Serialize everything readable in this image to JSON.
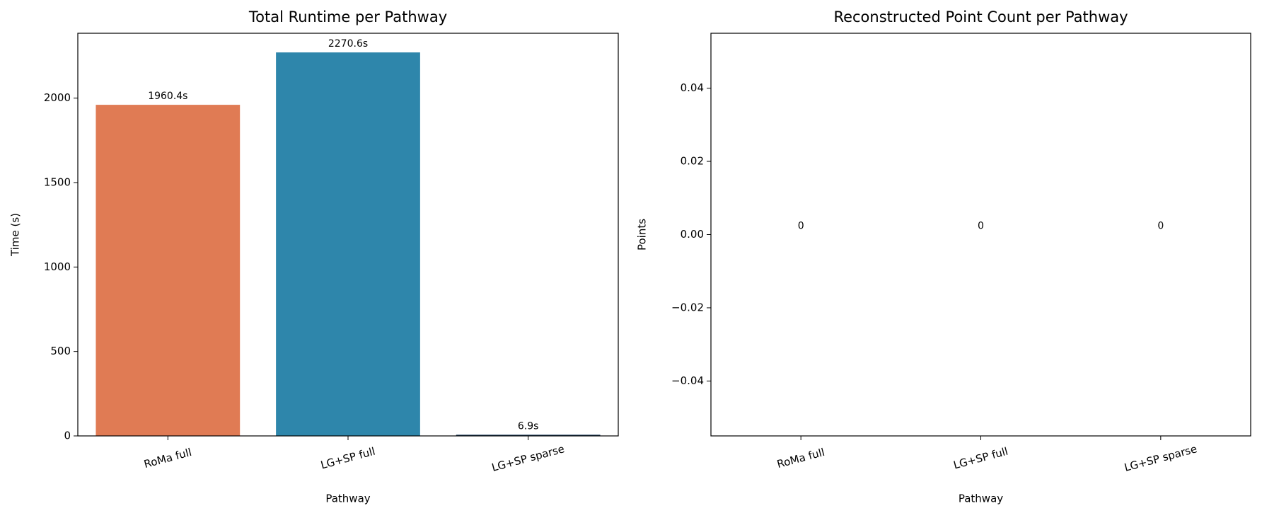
{
  "chart_data": [
    {
      "type": "bar",
      "title": "Total Runtime per Pathway",
      "xlabel": "Pathway",
      "ylabel": "Time (s)",
      "categories": [
        "RoMa full",
        "LG+SP full",
        "LG+SP sparse"
      ],
      "values": [
        1960.4,
        2270.6,
        6.9
      ],
      "value_labels": [
        "1960.4s",
        "2270.6s",
        "6.9s"
      ],
      "colors": [
        "#e07b54",
        "#2e86ab",
        "#1b3a5c"
      ],
      "ylim": [
        0,
        2384
      ],
      "yticks": [
        0,
        500,
        1000,
        1500,
        2000
      ]
    },
    {
      "type": "bar",
      "title": "Reconstructed Point Count per Pathway",
      "xlabel": "Pathway",
      "ylabel": "Points",
      "categories": [
        "RoMa full",
        "LG+SP full",
        "LG+SP sparse"
      ],
      "values": [
        0,
        0,
        0
      ],
      "colors": [
        "#e07b54",
        "#2e86ab",
        "#1b3a5c"
      ],
      "ylim": [
        -0.055,
        0.055
      ],
      "yticks": [
        {
          "value": -0.04,
          "label": "−0.04"
        },
        {
          "value": -0.02,
          "label": "−0.02"
        },
        {
          "value": 0,
          "label": "0.00"
        },
        {
          "value": 0.02,
          "label": "0.02"
        },
        {
          "value": 0.04,
          "label": "0.04"
        }
      ]
    }
  ]
}
